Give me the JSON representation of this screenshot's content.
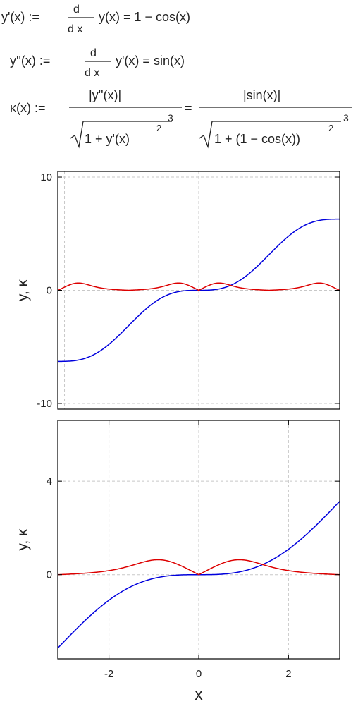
{
  "equations": {
    "l1_lhs": "y'(x) :=",
    "l1_num": "d",
    "l1_den": "d x",
    "l1_rhs": "y(x) = 1 − cos(x)",
    "l2_lhs": "y''(x) :=",
    "l2_num": "d",
    "l2_den": "d x",
    "l2_rhs": "y'(x) = sin(x)",
    "l3_lhs": "κ(x) :=",
    "l3_num1": "|y''(x)|",
    "l3_den1": "1 + y'(x)",
    "l3_eq": "=",
    "l3_num2": "|sin(x)|",
    "l3_den2": "1 + (1 − cos(x))",
    "sq": "2",
    "cube": "3"
  },
  "chart_data": [
    {
      "type": "line",
      "xlim": [
        -6.3,
        6.3
      ],
      "ylim": [
        -10.5,
        10.5
      ],
      "yticks": [
        -10,
        0,
        10
      ],
      "ytick_labels": [
        "-10",
        "0",
        "10"
      ],
      "xgrid": [
        -6.0,
        0,
        6.0
      ],
      "xlabel": "",
      "ylabel": "y, κ",
      "grid": true,
      "series": [
        {
          "function": "y = x - sin(x)",
          "color": "#0000dd"
        },
        {
          "function": "kappa = |sin x| / (1 + (1 - cos x)^2)^1.5",
          "color": "#dd0000"
        }
      ]
    },
    {
      "type": "line",
      "xlim": [
        -3.14,
        3.14
      ],
      "ylim": [
        -3.6,
        6.6
      ],
      "xticks": [
        -2,
        0,
        2
      ],
      "xtick_labels": [
        "-2",
        "0",
        "2"
      ],
      "yticks": [
        0,
        4
      ],
      "ytick_labels": [
        "0",
        "4"
      ],
      "xlabel": "x",
      "ylabel": "y, κ",
      "grid": true,
      "series": [
        {
          "function": "y = x - sin(x)",
          "color": "#0000dd"
        },
        {
          "function": "kappa = |sin x| / (1 + (1 - cos x)^2)^1.5",
          "color": "#dd0000"
        }
      ]
    }
  ]
}
